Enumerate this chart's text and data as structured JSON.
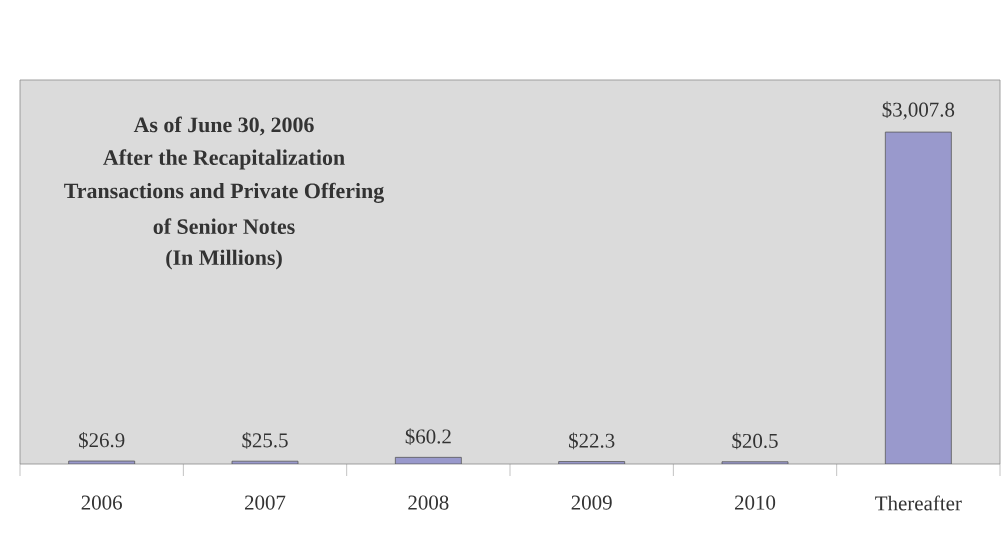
{
  "chart_data": {
    "type": "bar",
    "categories": [
      "2006",
      "2007",
      "2008",
      "2009",
      "2010",
      "Thereafter"
    ],
    "values": [
      26.9,
      25.5,
      60.2,
      22.3,
      20.5,
      3007.8
    ],
    "value_labels": [
      "$26.9",
      "$25.5",
      "$60.2",
      "$22.3",
      "$20.5",
      "$3,007.8"
    ],
    "color": "#9999cc",
    "annotations": [
      "As of June 30, 2006",
      "After the Recapitalization",
      "Transactions and Private Offering",
      "of Senior Notes",
      "(In Millions)"
    ],
    "tick_labels": "x"
  }
}
